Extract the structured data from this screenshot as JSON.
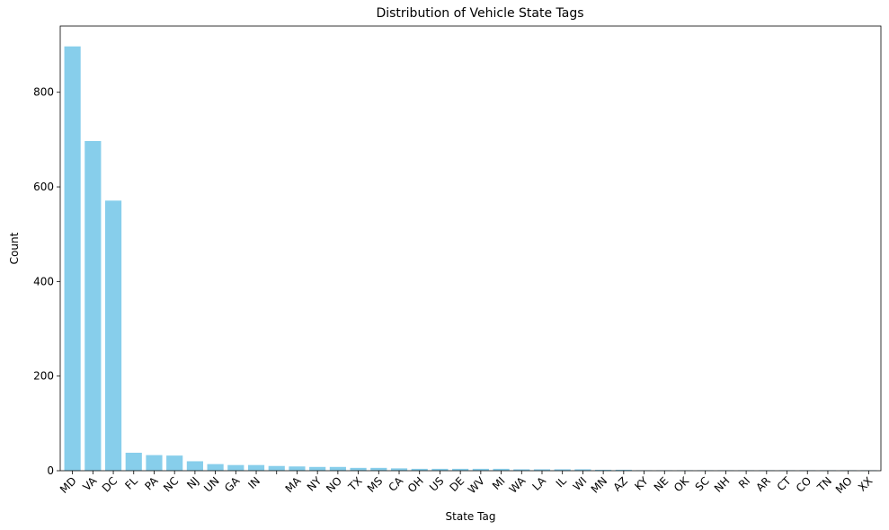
{
  "chart_data": {
    "type": "bar",
    "title": "Distribution of Vehicle State Tags",
    "xlabel": "State Tag",
    "ylabel": "Count",
    "ylim": [
      0,
      940
    ],
    "yticks": [
      0,
      200,
      400,
      600,
      800
    ],
    "grid": false,
    "legend": "none",
    "bar_color": "#87CEEB",
    "categories": [
      "MD",
      "VA",
      "DC",
      "FL",
      "PA",
      "NC",
      "NJ",
      "UN",
      "GA",
      "IN",
      "",
      "MA",
      "NY",
      "NO",
      "TX",
      "MS",
      "CA",
      "OH",
      "US",
      "DE",
      "WV",
      "MI",
      "WA",
      "LA",
      "IL",
      "WI",
      "MN",
      "AZ",
      "KY",
      "NE",
      "OK",
      "SC",
      "NH",
      "RI",
      "AR",
      "CT",
      "CO",
      "TN",
      "MO",
      "XX"
    ],
    "values": [
      897,
      697,
      571,
      38,
      33,
      32,
      20,
      14,
      12,
      12,
      10,
      9,
      8,
      8,
      6,
      6,
      5,
      4,
      4,
      4,
      4,
      4,
      3,
      3,
      3,
      3,
      2,
      2,
      1,
      1,
      1,
      1,
      1,
      1,
      1,
      1,
      1,
      1,
      1,
      1
    ]
  }
}
